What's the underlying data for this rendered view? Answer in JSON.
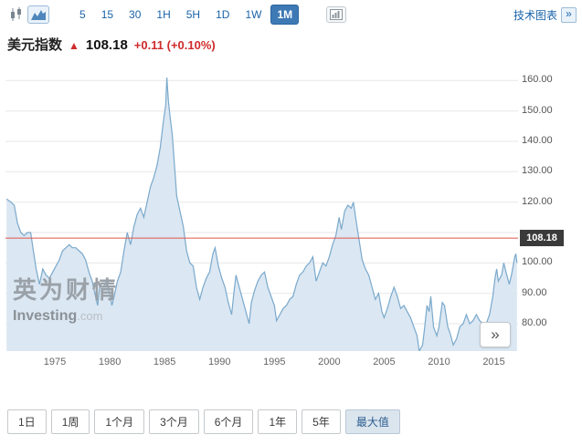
{
  "topbar": {
    "intervals": [
      "5",
      "15",
      "30",
      "1H",
      "5H",
      "1D",
      "1W",
      "1M"
    ],
    "selected_interval": "1M",
    "tech_link": "技术图表",
    "tech_link_chevron": "»"
  },
  "quote": {
    "name": "美元指数",
    "direction_arrow": "▲",
    "price": "108.18",
    "change": "+0.11",
    "change_percent": "(+0.10%)"
  },
  "chart": {
    "price_tag": "108.18",
    "watermark_title": "英为财情",
    "watermark_brand": "Investing",
    "watermark_tld": ".com",
    "expand_label": "»",
    "colors": {
      "area_fill": "#dbe7f2",
      "line": "#7aa9cc",
      "current_price_line": "#e0564a",
      "grid": "#e7e7e7",
      "tag_bg": "#3a3a3a"
    }
  },
  "chart_data": {
    "type": "area",
    "title": "美元指数 (US Dollar Index), 1M candles, max range",
    "xlim": [
      1970.5,
      2017.2
    ],
    "ylim": [
      71,
      164
    ],
    "x_ticks": [
      1975,
      1980,
      1985,
      1990,
      1995,
      2000,
      2005,
      2010,
      2015
    ],
    "y_ticks": [
      80,
      90,
      100,
      110,
      120,
      130,
      140,
      150,
      160
    ],
    "current_price": 108.18,
    "grid": "horizontal",
    "y_axis_position": "right",
    "x": [
      1970.6,
      1971.0,
      1971.3,
      1971.6,
      1971.9,
      1972.2,
      1972.5,
      1972.8,
      1973.0,
      1973.3,
      1973.6,
      1973.9,
      1974.2,
      1974.5,
      1974.8,
      1975.1,
      1975.4,
      1975.7,
      1976.0,
      1976.3,
      1976.6,
      1976.9,
      1977.2,
      1977.5,
      1977.8,
      1978.1,
      1978.4,
      1978.7,
      1978.9,
      1979.1,
      1979.4,
      1979.7,
      1980.0,
      1980.2,
      1980.4,
      1980.7,
      1981.0,
      1981.3,
      1981.6,
      1981.9,
      1982.2,
      1982.5,
      1982.8,
      1983.1,
      1983.4,
      1983.7,
      1984.0,
      1984.3,
      1984.6,
      1984.9,
      1985.1,
      1985.2,
      1985.35,
      1985.5,
      1985.7,
      1985.9,
      1986.1,
      1986.4,
      1986.7,
      1987.0,
      1987.3,
      1987.6,
      1987.9,
      1988.2,
      1988.5,
      1988.8,
      1989.1,
      1989.4,
      1989.6,
      1989.9,
      1990.2,
      1990.5,
      1990.8,
      1991.1,
      1991.3,
      1991.5,
      1991.8,
      1992.1,
      1992.4,
      1992.7,
      1992.9,
      1993.2,
      1993.5,
      1993.8,
      1994.1,
      1994.4,
      1994.7,
      1995.0,
      1995.2,
      1995.5,
      1995.8,
      1996.1,
      1996.4,
      1996.7,
      1997.0,
      1997.3,
      1997.6,
      1997.9,
      1998.2,
      1998.5,
      1998.8,
      1999.1,
      1999.4,
      1999.7,
      2000.0,
      2000.3,
      2000.6,
      2000.9,
      2001.1,
      2001.4,
      2001.7,
      2002.0,
      2002.2,
      2002.4,
      2002.7,
      2003.0,
      2003.3,
      2003.6,
      2003.9,
      2004.2,
      2004.5,
      2004.8,
      2005.0,
      2005.3,
      2005.6,
      2005.9,
      2006.2,
      2006.5,
      2006.8,
      2007.1,
      2007.4,
      2007.7,
      2008.0,
      2008.2,
      2008.5,
      2008.7,
      2008.9,
      2009.1,
      2009.25,
      2009.5,
      2009.8,
      2010.0,
      2010.3,
      2010.5,
      2010.8,
      2011.0,
      2011.3,
      2011.6,
      2011.9,
      2012.2,
      2012.5,
      2012.8,
      2013.1,
      2013.4,
      2013.7,
      2014.0,
      2014.3,
      2014.6,
      2014.9,
      2015.1,
      2015.25,
      2015.4,
      2015.7,
      2015.9,
      2016.1,
      2016.4,
      2016.6,
      2016.9,
      2017.0,
      2017.1
    ],
    "values": [
      121,
      120,
      119,
      113,
      110,
      109,
      110,
      110,
      105,
      98,
      93,
      98,
      96,
      95,
      97,
      99,
      101,
      104,
      105,
      106,
      105,
      105,
      104,
      103,
      101,
      97,
      94,
      89,
      86,
      93,
      92,
      94,
      90,
      86,
      89,
      94,
      97,
      104,
      110,
      106,
      112,
      116,
      118,
      115,
      120,
      125,
      128,
      132,
      138,
      147,
      152,
      161,
      153,
      148,
      142,
      132,
      122,
      117,
      112,
      104,
      100,
      99,
      92,
      88,
      92,
      95,
      97,
      103,
      105,
      99,
      95,
      92,
      87,
      83,
      90,
      96,
      92,
      88,
      84,
      80,
      87,
      91,
      94,
      96,
      97,
      92,
      89,
      86,
      81,
      83,
      85,
      86,
      88,
      89,
      93,
      96,
      97,
      99,
      100,
      102,
      94,
      97,
      100,
      99,
      102,
      106,
      109,
      115,
      111,
      117,
      119,
      118,
      120,
      115,
      108,
      101,
      98,
      96,
      92,
      88,
      90,
      84,
      82,
      85,
      89,
      92,
      89,
      85,
      86,
      84,
      82,
      79,
      76,
      71,
      73,
      79,
      86,
      84,
      89,
      79,
      76,
      79,
      87,
      86,
      79,
      77,
      73,
      75,
      79,
      80,
      83,
      80,
      81,
      83,
      81,
      80,
      80,
      83,
      89,
      95,
      98,
      94,
      96,
      100,
      97,
      93,
      96,
      102,
      103,
      100
    ]
  },
  "ranges": {
    "options": [
      "1日",
      "1周",
      "1个月",
      "3个月",
      "6个月",
      "1年",
      "5年",
      "最大值"
    ],
    "selected": "最大值"
  }
}
